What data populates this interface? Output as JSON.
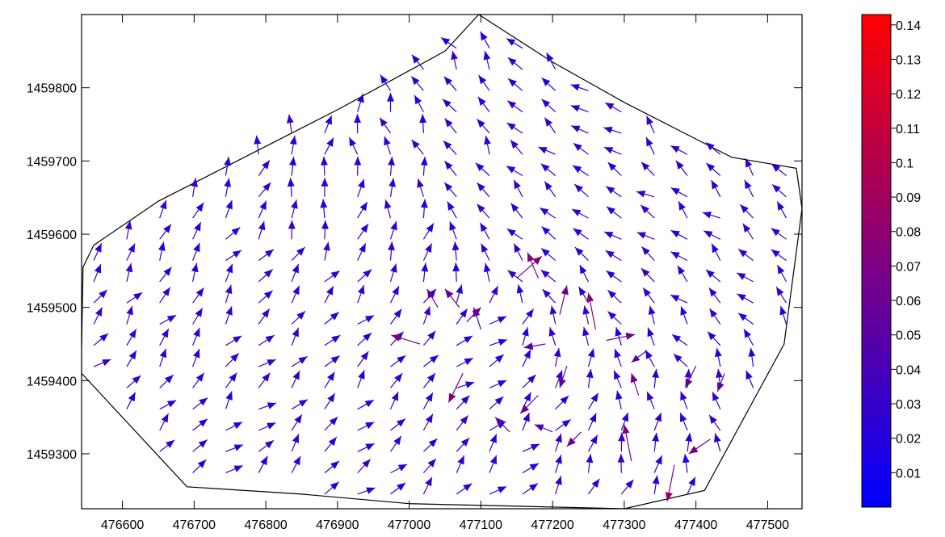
{
  "chart_data": {
    "type": "vector_field",
    "x_ticks": [
      476600,
      476700,
      476800,
      476900,
      477000,
      477100,
      477200,
      477300,
      477400,
      477500
    ],
    "y_ticks": [
      1459300,
      1459400,
      1459500,
      1459600,
      1459700,
      1459800
    ],
    "x_range": [
      476543,
      477548
    ],
    "y_range": [
      1459225,
      1459900
    ],
    "grid": false,
    "boundary": [
      [
        476543,
        1459440
      ],
      [
        476545,
        1459555
      ],
      [
        476560,
        1459585
      ],
      [
        476650,
        1459645
      ],
      [
        476760,
        1459700
      ],
      [
        476900,
        1459770
      ],
      [
        477050,
        1459850
      ],
      [
        477097,
        1459900
      ],
      [
        477200,
        1459835
      ],
      [
        477300,
        1459780
      ],
      [
        477450,
        1459705
      ],
      [
        477540,
        1459690
      ],
      [
        477548,
        1459635
      ],
      [
        477523,
        1459450
      ],
      [
        477412,
        1459250
      ],
      [
        477300,
        1459225
      ],
      [
        477000,
        1459232
      ],
      [
        476850,
        1459245
      ],
      [
        476690,
        1459255
      ],
      [
        476543,
        1459410
      ],
      [
        476543,
        1459440
      ]
    ],
    "colorbar": {
      "ticks": [
        "0.14",
        "0.13",
        "0.12",
        "0.11",
        "0.1",
        "0.09",
        "0.08",
        "0.07",
        "0.06",
        "0.05",
        "0.04",
        "0.03",
        "0.02",
        "0.01"
      ],
      "tick_values": [
        0.14,
        0.13,
        0.12,
        0.11,
        0.1,
        0.09,
        0.08,
        0.07,
        0.06,
        0.05,
        0.04,
        0.03,
        0.02,
        0.01
      ],
      "min": 0.0,
      "max": 0.143,
      "color_low": "#0000ff",
      "color_high": "#ff0000"
    },
    "field_center": [
      477160,
      1459490
    ],
    "vectors": [
      {
        "x": 477150,
        "y": 1459540,
        "dx": 35,
        "dy": 30,
        "mag": 0.07
      },
      {
        "x": 477180,
        "y": 1459540,
        "dx": -15,
        "dy": 35,
        "mag": 0.075
      },
      {
        "x": 477080,
        "y": 1459480,
        "dx": 20,
        "dy": 20,
        "mag": 0.06
      },
      {
        "x": 477100,
        "y": 1459470,
        "dx": -10,
        "dy": 30,
        "mag": 0.055
      },
      {
        "x": 477015,
        "y": 1459450,
        "dx": -40,
        "dy": 12,
        "mag": 0.065
      },
      {
        "x": 477075,
        "y": 1459410,
        "dx": -20,
        "dy": -40,
        "mag": 0.075
      },
      {
        "x": 477210,
        "y": 1459490,
        "dx": 10,
        "dy": 40,
        "mag": 0.06
      },
      {
        "x": 477260,
        "y": 1459470,
        "dx": -10,
        "dy": 50,
        "mag": 0.075
      },
      {
        "x": 477275,
        "y": 1459455,
        "dx": 40,
        "dy": 8,
        "mag": 0.06
      },
      {
        "x": 477320,
        "y": 1459380,
        "dx": -10,
        "dy": 30,
        "mag": 0.065
      },
      {
        "x": 477310,
        "y": 1459290,
        "dx": -10,
        "dy": 50,
        "mag": 0.075
      },
      {
        "x": 477370,
        "y": 1459285,
        "dx": -10,
        "dy": -50,
        "mag": 0.08
      },
      {
        "x": 477420,
        "y": 1459320,
        "dx": -30,
        "dy": -20,
        "mag": 0.065
      },
      {
        "x": 477180,
        "y": 1459380,
        "dx": -25,
        "dy": -25,
        "mag": 0.06
      },
      {
        "x": 477240,
        "y": 1459330,
        "dx": -20,
        "dy": -20,
        "mag": 0.06
      },
      {
        "x": 477070,
        "y": 1459500,
        "dx": -20,
        "dy": 25,
        "mag": 0.055
      },
      {
        "x": 477040,
        "y": 1459500,
        "dx": -15,
        "dy": 25,
        "mag": 0.05
      },
      {
        "x": 477190,
        "y": 1459450,
        "dx": -30,
        "dy": -5,
        "mag": 0.05
      },
      {
        "x": 477220,
        "y": 1459420,
        "dx": -10,
        "dy": -30,
        "mag": 0.055
      },
      {
        "x": 477330,
        "y": 1459440,
        "dx": -20,
        "dy": -15,
        "mag": 0.045
      },
      {
        "x": 477400,
        "y": 1459420,
        "dx": -15,
        "dy": -30,
        "mag": 0.055
      },
      {
        "x": 477440,
        "y": 1459410,
        "dx": -10,
        "dy": -25,
        "mag": 0.05
      },
      {
        "x": 477140,
        "y": 1459330,
        "dx": -20,
        "dy": 20,
        "mag": 0.05
      },
      {
        "x": 477200,
        "y": 1459330,
        "dx": -25,
        "dy": 10,
        "mag": 0.05
      }
    ]
  }
}
